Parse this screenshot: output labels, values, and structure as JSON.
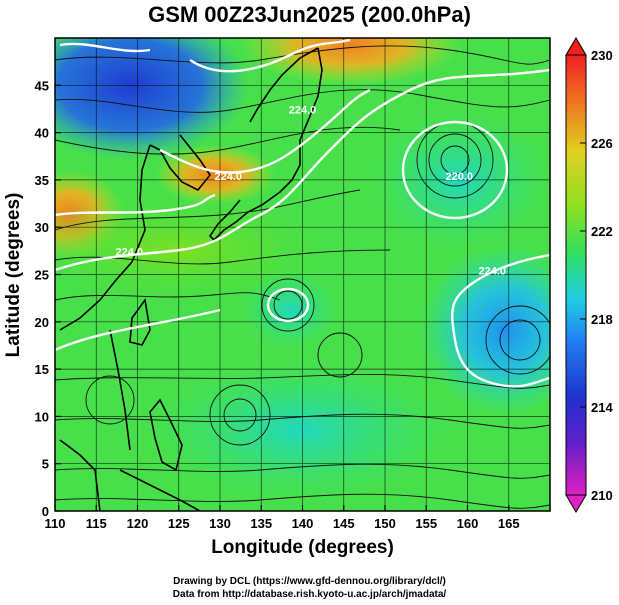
{
  "title": "GSM 00Z23Jun2025 (200.0hPa)",
  "x_axis": {
    "label": "Longitude (degrees)",
    "range": [
      110,
      170
    ],
    "ticks": [
      "110",
      "115",
      "120",
      "125",
      "130",
      "135",
      "140",
      "145",
      "150",
      "155",
      "160",
      "165"
    ],
    "tick_values": [
      110,
      115,
      120,
      125,
      130,
      135,
      140,
      145,
      150,
      155,
      160,
      165
    ]
  },
  "y_axis": {
    "label": "Latitude  (degrees)",
    "range": [
      0,
      50
    ],
    "ticks": [
      "0",
      "5",
      "10",
      "15",
      "20",
      "25",
      "30",
      "35",
      "40",
      "45"
    ],
    "tick_values": [
      0,
      5,
      10,
      15,
      20,
      25,
      30,
      35,
      40,
      45
    ]
  },
  "colorbar": {
    "range": [
      210,
      230
    ],
    "ticks": [
      "210",
      "214",
      "218",
      "222",
      "226",
      "230"
    ],
    "tick_values": [
      210,
      214,
      218,
      222,
      226,
      230
    ],
    "colors": [
      "#e020c0",
      "#4020c8",
      "#2060f0",
      "#20d0f0",
      "#40e060",
      "#a0e020",
      "#f0c020",
      "#f06020",
      "#f02020"
    ]
  },
  "contour_labels": [
    {
      "text": "220.0",
      "lon": 159,
      "lat": 35
    },
    {
      "text": "224.0",
      "lon": 131,
      "lat": 35
    },
    {
      "text": "224.0",
      "lon": 119,
      "lat": 27
    },
    {
      "text": "224.0",
      "lon": 140,
      "lat": 42
    },
    {
      "text": "224.0",
      "lon": 163,
      "lat": 25
    }
  ],
  "credits": {
    "line1": "Drawing by DCL (https://www.gfd-dennou.org/library/dcl/)",
    "line2": "Data from http://database.rish.kyoto-u.ac.jp/arch/jmadata/"
  }
}
